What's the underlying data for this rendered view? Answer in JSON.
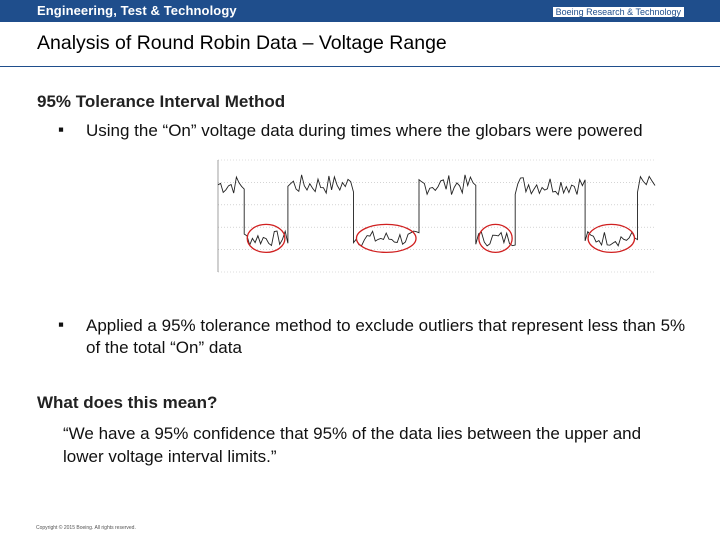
{
  "header": {
    "brand": "Engineering, Test & Technology",
    "tagline": "Boeing Research & Technology",
    "bar_color": "#1f4e8c"
  },
  "slide": {
    "title": "Analysis of Round Robin Data – Voltage Range",
    "section_heading": "95% Tolerance Interval Method",
    "bullets": [
      {
        "marker": "▪",
        "text": "Using the “On” voltage data during times where the globars were powered"
      },
      {
        "marker": "▪",
        "text": "Applied a 95% tolerance method to exclude outliers that represent less than 5% of the total “On” data"
      }
    ],
    "question": "What does this mean?",
    "quote": "“We have a 95% confidence that 95% of the data lies between the upper and lower voltage interval limits.”",
    "copyright": "Copyright © 2015 Boeing. All rights reserved."
  },
  "chart_data": {
    "type": "line",
    "title": "",
    "xlabel": "",
    "ylabel": "",
    "grid": true,
    "ylim": [
      0,
      1
    ],
    "description_segments": [
      {
        "kind": "high",
        "x": [
          0.0,
          0.06
        ]
      },
      {
        "kind": "low",
        "x": [
          0.06,
          0.16
        ]
      },
      {
        "kind": "high",
        "x": [
          0.16,
          0.31
        ]
      },
      {
        "kind": "low",
        "x": [
          0.31,
          0.46
        ]
      },
      {
        "kind": "high",
        "x": [
          0.46,
          0.59
        ]
      },
      {
        "kind": "low",
        "x": [
          0.59,
          0.68
        ]
      },
      {
        "kind": "high",
        "x": [
          0.68,
          0.84
        ]
      },
      {
        "kind": "low",
        "x": [
          0.84,
          0.96
        ]
      },
      {
        "kind": "high",
        "x": [
          0.96,
          1.0
        ]
      }
    ],
    "high_level": 0.78,
    "low_level": 0.3,
    "highlight_color": "#d02020",
    "line_color": "#222222"
  }
}
